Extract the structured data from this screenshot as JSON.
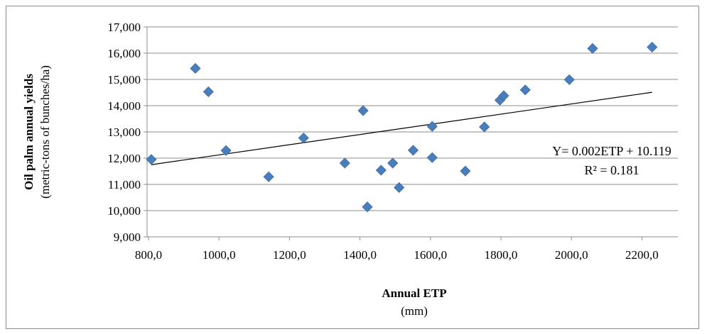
{
  "chart_data": {
    "type": "scatter",
    "title": "",
    "xlabel": "Annual ETP",
    "xlabel_unit": "(mm)",
    "ylabel": "Oil palm annual yields",
    "ylabel_unit": "(metric-tons of bunches/ha)",
    "xlim": [
      800,
      2300
    ],
    "ylim": [
      9000,
      17000
    ],
    "x_ticks": [
      800,
      1000,
      1200,
      1400,
      1600,
      1800,
      2000,
      2200
    ],
    "x_tick_labels": [
      "800,0",
      "1000,0",
      "1200,0",
      "1400,0",
      "1600,0",
      "1800,0",
      "2000,0",
      "2200,0"
    ],
    "y_ticks": [
      9000,
      10000,
      11000,
      12000,
      13000,
      14000,
      15000,
      16000,
      17000
    ],
    "y_tick_labels": [
      "9,000",
      "10,000",
      "11,000",
      "12,000",
      "13,000",
      "14,000",
      "15,000",
      "16,000",
      "17,000"
    ],
    "grid": "horizontal",
    "marker_color": "#4a7ebb",
    "points": [
      {
        "x": 808,
        "y": 11950
      },
      {
        "x": 933,
        "y": 15420
      },
      {
        "x": 970,
        "y": 14530
      },
      {
        "x": 1020,
        "y": 12290
      },
      {
        "x": 1141,
        "y": 11290
      },
      {
        "x": 1240,
        "y": 12770
      },
      {
        "x": 1357,
        "y": 11810
      },
      {
        "x": 1409,
        "y": 13810
      },
      {
        "x": 1421,
        "y": 10140
      },
      {
        "x": 1460,
        "y": 11540
      },
      {
        "x": 1493,
        "y": 11810
      },
      {
        "x": 1511,
        "y": 10880
      },
      {
        "x": 1551,
        "y": 12300
      },
      {
        "x": 1605,
        "y": 12020
      },
      {
        "x": 1605,
        "y": 13210
      },
      {
        "x": 1699,
        "y": 11510
      },
      {
        "x": 1753,
        "y": 13190
      },
      {
        "x": 1797,
        "y": 14210
      },
      {
        "x": 1808,
        "y": 14380
      },
      {
        "x": 1869,
        "y": 14600
      },
      {
        "x": 1994,
        "y": 14990
      },
      {
        "x": 2060,
        "y": 16180
      },
      {
        "x": 2229,
        "y": 16230
      }
    ],
    "trendline": {
      "x": [
        808,
        2229
      ],
      "y": [
        11750,
        14510
      ]
    },
    "annotation": {
      "equation": "Y= 0.002ETP + 10.119",
      "r2": "R² = 0.181"
    }
  }
}
